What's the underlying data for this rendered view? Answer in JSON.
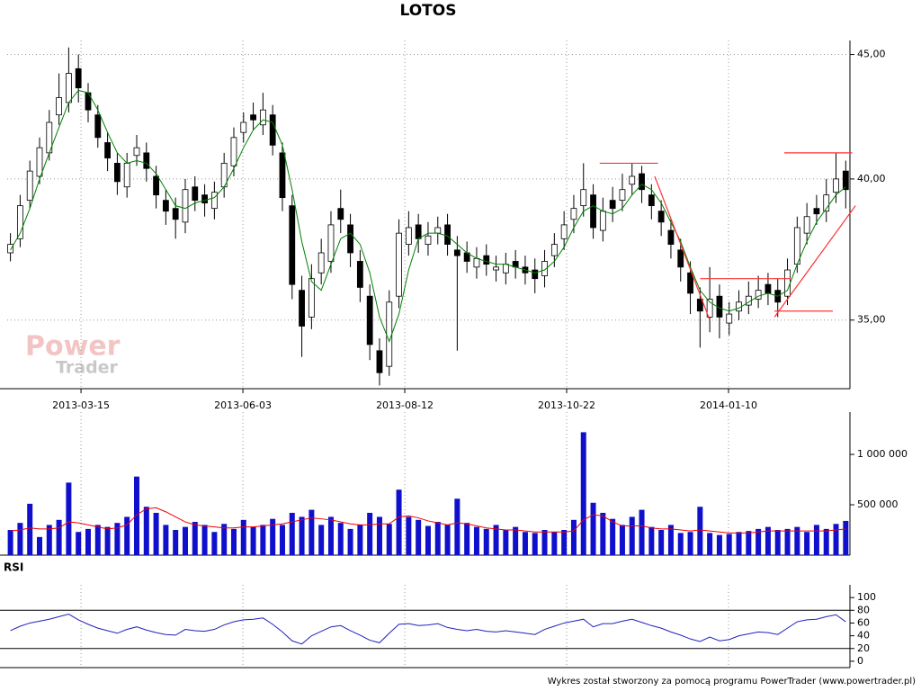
{
  "chart_data": {
    "type": "candlestick",
    "title": "LOTOS",
    "log_scale": true,
    "grid": true,
    "up_color": "#ffffff",
    "down_color": "#000000",
    "x": [
      1,
      4,
      7,
      10,
      13,
      16,
      19,
      22,
      25,
      28,
      31,
      34,
      37,
      40,
      43,
      46,
      49,
      52,
      55,
      58,
      61,
      64,
      67,
      70,
      73,
      76,
      79,
      82,
      85,
      88,
      91,
      94,
      97,
      100,
      103,
      106,
      109,
      112,
      115,
      118,
      121,
      124,
      127,
      130,
      133,
      136,
      139,
      142,
      145,
      148,
      151,
      154,
      157,
      160,
      163,
      166,
      169,
      172,
      175,
      178,
      181,
      184,
      187,
      190,
      193,
      196,
      199,
      202,
      205,
      208,
      211,
      214,
      217,
      220,
      223,
      226,
      229,
      232,
      235,
      238,
      241,
      244,
      247,
      250,
      253,
      256,
      259
    ],
    "xlim": [
      0,
      260.3
    ],
    "xticks": [
      {
        "value": 22.8,
        "label": "2013-03-15"
      },
      {
        "value": 72.8,
        "label": "2013-06-03"
      },
      {
        "value": 122.8,
        "label": "2013-08-12"
      },
      {
        "value": 172.8,
        "label": "2013-10-22"
      },
      {
        "value": 222.8,
        "label": "2014-01-10"
      }
    ],
    "ylim": [
      32.8,
      45.6
    ],
    "yticks": [
      {
        "value": 35,
        "label": "35,00"
      },
      {
        "value": 40,
        "label": "40,00"
      },
      {
        "value": 45,
        "label": "45,00"
      }
    ],
    "open": [
      37.3,
      37.8,
      39.2,
      40.1,
      41.0,
      42.5,
      43.0,
      44.4,
      43.4,
      42.5,
      41.4,
      40.6,
      39.7,
      40.9,
      41.0,
      40.1,
      39.2,
      38.9,
      38.4,
      39.7,
      39.4,
      38.9,
      39.7,
      40.5,
      41.8,
      42.5,
      42.1,
      42.5,
      41.0,
      39.0,
      36.0,
      35.1,
      36.6,
      37.0,
      38.9,
      38.3,
      37.0,
      35.8,
      34.0,
      33.5,
      35.8,
      37.6,
      38.3,
      37.6,
      38.0,
      38.3,
      37.4,
      37.3,
      36.8,
      37.2,
      36.7,
      36.6,
      37.0,
      36.8,
      36.7,
      36.5,
      37.2,
      37.8,
      38.5,
      39.0,
      39.4,
      38.1,
      39.2,
      39.2,
      39.8,
      40.2,
      39.4,
      38.8,
      38.1,
      37.4,
      36.6,
      35.7,
      35.1,
      35.8,
      34.9,
      35.3,
      35.5,
      35.7,
      36.2,
      36.0,
      35.8,
      36.9,
      38.0,
      38.9,
      38.8,
      39.5,
      40.3
    ],
    "high": [
      38.0,
      39.4,
      40.7,
      41.6,
      42.7,
      44.2,
      45.3,
      45.0,
      43.8,
      42.9,
      41.8,
      41.0,
      41.0,
      41.7,
      41.4,
      40.5,
      39.6,
      39.3,
      40.0,
      40.1,
      39.8,
      39.9,
      41.0,
      42.0,
      42.6,
      43.0,
      43.4,
      42.9,
      41.4,
      39.4,
      36.5,
      36.9,
      37.8,
      38.8,
      39.6,
      38.7,
      37.4,
      36.2,
      34.4,
      36.0,
      38.5,
      38.8,
      38.7,
      38.4,
      38.6,
      38.7,
      37.9,
      37.7,
      37.5,
      37.6,
      37.2,
      37.3,
      37.4,
      37.2,
      37.1,
      37.4,
      38.0,
      38.8,
      39.4,
      40.6,
      39.8,
      39.3,
      39.7,
      40.2,
      40.6,
      40.5,
      39.8,
      39.2,
      38.5,
      37.8,
      37.0,
      36.1,
      36.8,
      36.2,
      35.6,
      36.0,
      36.3,
      36.5,
      36.6,
      36.4,
      37.1,
      38.6,
      39.1,
      39.4,
      40.0,
      41.0,
      40.7
    ],
    "low": [
      37.0,
      37.5,
      38.9,
      39.8,
      40.7,
      42.1,
      42.6,
      43.0,
      42.2,
      41.2,
      40.3,
      39.4,
      39.3,
      40.5,
      39.9,
      38.9,
      38.3,
      37.8,
      38.0,
      38.8,
      38.6,
      38.5,
      39.3,
      40.1,
      41.4,
      41.9,
      41.7,
      40.9,
      38.8,
      35.7,
      33.8,
      34.7,
      36.2,
      36.6,
      38.0,
      36.8,
      35.6,
      33.7,
      32.9,
      33.2,
      35.4,
      37.2,
      37.3,
      37.2,
      37.6,
      37.2,
      34.0,
      36.6,
      36.4,
      36.5,
      36.3,
      36.2,
      36.4,
      36.2,
      35.9,
      36.1,
      36.8,
      37.4,
      38.0,
      38.6,
      37.8,
      37.7,
      38.4,
      38.8,
      39.4,
      39.1,
      38.5,
      37.9,
      37.1,
      36.3,
      35.2,
      34.1,
      34.6,
      34.4,
      34.5,
      35.0,
      35.2,
      35.4,
      35.5,
      35.1,
      35.5,
      36.6,
      37.6,
      38.3,
      38.4,
      39.1,
      38.9
    ],
    "close": [
      37.6,
      39.0,
      40.3,
      41.2,
      42.2,
      43.2,
      44.2,
      43.6,
      42.7,
      41.6,
      40.8,
      39.9,
      40.6,
      41.2,
      40.4,
      39.4,
      38.8,
      38.5,
      39.6,
      39.2,
      39.1,
      39.5,
      40.6,
      41.6,
      42.2,
      42.3,
      42.7,
      41.3,
      39.3,
      36.2,
      34.8,
      36.4,
      37.3,
      38.3,
      38.5,
      37.3,
      36.1,
      34.2,
      33.3,
      35.6,
      38.0,
      38.2,
      37.8,
      37.9,
      38.2,
      37.6,
      37.2,
      37.0,
      37.1,
      36.9,
      36.8,
      36.9,
      36.8,
      36.6,
      36.4,
      37.0,
      37.6,
      38.3,
      38.9,
      39.6,
      38.2,
      38.8,
      38.9,
      39.6,
      40.1,
      39.6,
      39.0,
      38.4,
      37.6,
      36.8,
      35.9,
      35.3,
      35.7,
      35.1,
      35.2,
      35.6,
      35.8,
      36.0,
      35.9,
      35.6,
      36.7,
      38.2,
      38.6,
      38.7,
      39.4,
      40.0,
      39.6
    ],
    "ma": {
      "color": "#008000",
      "values": [
        37.4,
        38.0,
        38.9,
        40.0,
        41.0,
        42.0,
        43.0,
        43.5,
        43.4,
        42.7,
        41.8,
        41.0,
        40.6,
        40.7,
        40.6,
        40.2,
        39.6,
        39.0,
        38.9,
        39.1,
        39.2,
        39.3,
        39.7,
        40.4,
        41.2,
        41.9,
        42.3,
        42.2,
        41.3,
        39.6,
        37.7,
        36.3,
        36.0,
        36.9,
        37.8,
        38.0,
        37.6,
        36.6,
        35.1,
        34.3,
        35.2,
        36.7,
        37.8,
        38.0,
        38.0,
        37.9,
        37.6,
        37.3,
        37.1,
        37.0,
        36.9,
        36.9,
        36.8,
        36.7,
        36.6,
        36.7,
        37.0,
        37.5,
        38.2,
        38.8,
        39.0,
        38.8,
        38.7,
        38.9,
        39.4,
        39.8,
        39.6,
        39.1,
        38.4,
        37.7,
        36.8,
        36.0,
        35.6,
        35.4,
        35.3,
        35.4,
        35.6,
        35.8,
        35.9,
        35.8,
        36.0,
        36.9,
        37.7,
        38.4,
        38.9,
        39.4,
        39.7
      ]
    },
    "trendlines": {
      "color": "#ff3333",
      "lines": [
        [
          183,
          40.6,
          201,
          40.6
        ],
        [
          200,
          40.1,
          217,
          35.0
        ],
        [
          214,
          36.4,
          242,
          36.4
        ],
        [
          237,
          35.3,
          255,
          35.3
        ],
        [
          237,
          35.1,
          262,
          39.0
        ],
        [
          240,
          41.0,
          261,
          41.0
        ]
      ]
    },
    "volume_panel": {
      "type": "bar",
      "color": "#1010cc",
      "ylim": [
        0,
        1420000
      ],
      "yticks": [
        {
          "value": 500000,
          "label": "500 000"
        },
        {
          "value": 1000000,
          "label": "1 000 000"
        }
      ],
      "values": [
        250000,
        320000,
        510000,
        180000,
        300000,
        350000,
        720000,
        230000,
        260000,
        300000,
        280000,
        320000,
        380000,
        780000,
        480000,
        420000,
        300000,
        250000,
        280000,
        330000,
        300000,
        230000,
        310000,
        260000,
        350000,
        280000,
        300000,
        360000,
        300000,
        420000,
        380000,
        450000,
        300000,
        380000,
        320000,
        260000,
        300000,
        420000,
        380000,
        310000,
        650000,
        380000,
        350000,
        290000,
        330000,
        300000,
        560000,
        320000,
        280000,
        260000,
        300000,
        250000,
        280000,
        230000,
        220000,
        250000,
        230000,
        250000,
        350000,
        1220000,
        520000,
        420000,
        360000,
        300000,
        380000,
        450000,
        280000,
        250000,
        300000,
        220000,
        230000,
        480000,
        220000,
        200000,
        210000,
        230000,
        240000,
        260000,
        280000,
        250000,
        260000,
        280000,
        230000,
        300000,
        260000,
        310000,
        340000
      ],
      "ma": {
        "color": "#ee0000",
        "values": [
          240000,
          250000,
          270000,
          260000,
          260000,
          270000,
          330000,
          320000,
          300000,
          280000,
          260000,
          270000,
          300000,
          400000,
          460000,
          470000,
          430000,
          380000,
          330000,
          300000,
          290000,
          280000,
          270000,
          270000,
          280000,
          280000,
          290000,
          300000,
          310000,
          330000,
          350000,
          370000,
          360000,
          350000,
          330000,
          310000,
          300000,
          300000,
          310000,
          310000,
          380000,
          390000,
          370000,
          340000,
          320000,
          300000,
          320000,
          310000,
          290000,
          270000,
          260000,
          250000,
          250000,
          240000,
          230000,
          230000,
          230000,
          230000,
          240000,
          350000,
          400000,
          390000,
          330000,
          290000,
          290000,
          290000,
          270000,
          260000,
          260000,
          250000,
          240000,
          250000,
          240000,
          230000,
          220000,
          220000,
          220000,
          230000,
          240000,
          240000,
          240000,
          240000,
          240000,
          240000,
          240000,
          250000,
          260000
        ]
      }
    },
    "rsi_panel": {
      "type": "line",
      "title": "RSI",
      "color": "#2020c0",
      "ylim": [
        -10,
        120
      ],
      "yticks": [
        0,
        20,
        40,
        60,
        80,
        100
      ],
      "levels": [
        20,
        80
      ],
      "values": [
        48,
        55,
        60,
        63,
        66,
        70,
        74,
        65,
        58,
        52,
        48,
        44,
        50,
        54,
        49,
        45,
        42,
        41,
        50,
        48,
        47,
        50,
        57,
        62,
        65,
        66,
        68,
        58,
        46,
        32,
        27,
        40,
        47,
        54,
        56,
        48,
        41,
        33,
        29,
        44,
        58,
        59,
        56,
        57,
        59,
        53,
        50,
        48,
        50,
        47,
        46,
        48,
        46,
        44,
        42,
        50,
        55,
        60,
        63,
        66,
        54,
        59,
        59,
        63,
        66,
        61,
        56,
        52,
        46,
        41,
        35,
        31,
        38,
        32,
        34,
        40,
        43,
        46,
        45,
        42,
        52,
        62,
        65,
        66,
        70,
        73,
        62
      ]
    }
  },
  "watermark": [
    "Power",
    "Trader"
  ],
  "footer": "Wykres został stworzony za pomocą programu PowerTrader (www.powertrader.pl)"
}
